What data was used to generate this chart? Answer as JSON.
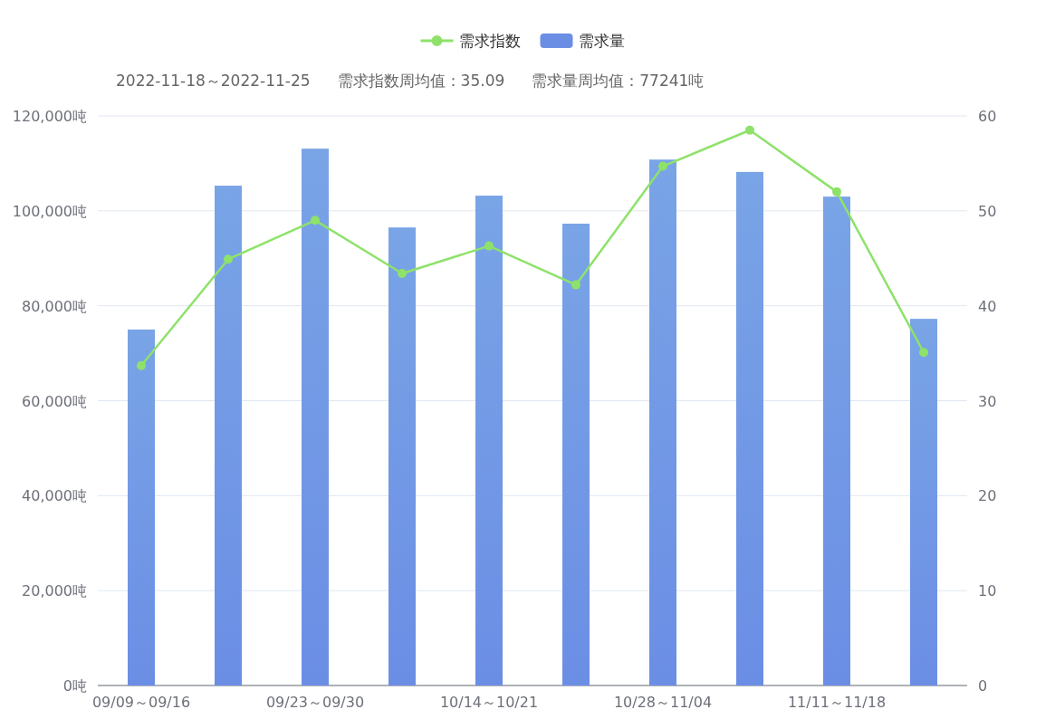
{
  "chart_data": {
    "type": "bar",
    "categories": [
      "09/09～09/16",
      null,
      "09/23～09/30",
      null,
      "10/14～10/21",
      null,
      "10/28～11/04",
      null,
      "11/11～11/18",
      null
    ],
    "series": [
      {
        "name": "需求指数",
        "type": "line",
        "axis": "y2",
        "color": "#8ee26a",
        "marker": "circle",
        "values": [
          33.7,
          44.9,
          49.0,
          43.4,
          46.3,
          42.2,
          54.7,
          58.5,
          52.0,
          35.09
        ]
      },
      {
        "name": "需求量",
        "color": "#6b8ee5",
        "values": [
          75000,
          105300,
          113100,
          96500,
          103200,
          97300,
          110800,
          108200,
          103000,
          77241
        ]
      }
    ],
    "ylim": [
      0,
      120000
    ],
    "yticks": [
      {
        "value": 0,
        "label": "0吨"
      },
      {
        "value": 20000,
        "label": "20,000吨"
      },
      {
        "value": 40000,
        "label": "40,000吨"
      },
      {
        "value": 60000,
        "label": "60,000吨"
      },
      {
        "value": 80000,
        "label": "80,000吨"
      },
      {
        "value": 100000,
        "label": "100,000吨"
      },
      {
        "value": 120000,
        "label": "120,000吨"
      }
    ],
    "y2lim": [
      0,
      60
    ],
    "y2ticks": [
      0,
      10,
      20,
      30,
      40,
      50,
      60
    ],
    "grid": "y",
    "legend": "top",
    "annotations": [
      "2022-11-18～2022-11-25",
      "需求指数周均值：35.09",
      "需求量周均值：77241吨"
    ]
  }
}
